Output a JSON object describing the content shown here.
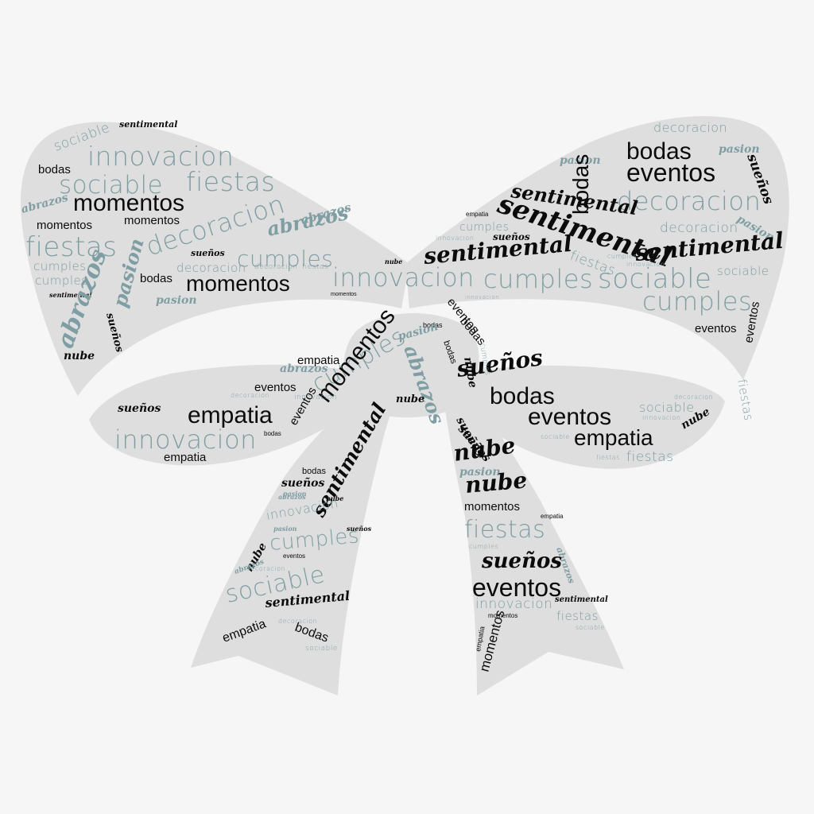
{
  "colors": {
    "background": "#f6f6f6",
    "bow_fill": "#dedede",
    "ink_dark": "#0b0b0b",
    "ink_teal": "#7f9ea3"
  },
  "words": [
    {
      "text": "sociable",
      "tone": "teal",
      "style": "thin"
    },
    {
      "text": "sentimental",
      "tone": "dark",
      "style": "script"
    },
    {
      "text": "innovacion",
      "tone": "teal",
      "style": "thin"
    },
    {
      "text": "sociable",
      "tone": "teal",
      "style": "thin"
    },
    {
      "text": "fiestas",
      "tone": "teal",
      "style": "thin"
    },
    {
      "text": "bodas",
      "tone": "dark",
      "style": "sans"
    },
    {
      "text": "momentos",
      "tone": "dark",
      "style": "sans"
    },
    {
      "text": "abrazos",
      "tone": "teal",
      "style": "script"
    },
    {
      "text": "momentos",
      "tone": "dark",
      "style": "sans"
    },
    {
      "text": "momentos",
      "tone": "dark",
      "style": "sans"
    },
    {
      "text": "decoracion",
      "tone": "teal",
      "style": "thin"
    },
    {
      "text": "abrazos",
      "tone": "teal",
      "style": "script"
    },
    {
      "text": "abrazos",
      "tone": "teal",
      "style": "script"
    },
    {
      "text": "fiestas",
      "tone": "teal",
      "style": "thin"
    },
    {
      "text": "pasion",
      "tone": "teal",
      "style": "script"
    },
    {
      "text": "sueños",
      "tone": "dark",
      "style": "script"
    },
    {
      "text": "decoracion",
      "tone": "teal",
      "style": "thin"
    },
    {
      "text": "cumples",
      "tone": "teal",
      "style": "thin"
    },
    {
      "text": "cumples",
      "tone": "teal",
      "style": "thin"
    },
    {
      "text": "decoracion",
      "tone": "teal",
      "style": "thin"
    },
    {
      "text": "fiestas",
      "tone": "teal",
      "style": "thin"
    },
    {
      "text": "cumples",
      "tone": "teal",
      "style": "thin"
    },
    {
      "text": "bodas",
      "tone": "dark",
      "style": "sans"
    },
    {
      "text": "momentos",
      "tone": "dark",
      "style": "sans"
    },
    {
      "text": "sentimental",
      "tone": "dark",
      "style": "script"
    },
    {
      "text": "pasion",
      "tone": "teal",
      "style": "script"
    },
    {
      "text": "abrazos",
      "tone": "teal",
      "style": "script"
    },
    {
      "text": "sueños",
      "tone": "dark",
      "style": "script"
    },
    {
      "text": "nube",
      "tone": "dark",
      "style": "script"
    },
    {
      "text": "innovacion",
      "tone": "teal",
      "style": "thin"
    },
    {
      "text": "cumples",
      "tone": "teal",
      "style": "thin"
    },
    {
      "text": "sociable",
      "tone": "teal",
      "style": "thin"
    },
    {
      "text": "cumples",
      "tone": "teal",
      "style": "thin"
    },
    {
      "text": "decoracion",
      "tone": "teal",
      "style": "thin"
    },
    {
      "text": "pasion",
      "tone": "teal",
      "style": "script"
    },
    {
      "text": "bodas",
      "tone": "dark",
      "style": "sans"
    },
    {
      "text": "bodas",
      "tone": "dark",
      "style": "sans"
    },
    {
      "text": "eventos",
      "tone": "dark",
      "style": "sans"
    },
    {
      "text": "pasion",
      "tone": "teal",
      "style": "script"
    },
    {
      "text": "decoracion",
      "tone": "teal",
      "style": "thin"
    },
    {
      "text": "sueños",
      "tone": "dark",
      "style": "script"
    },
    {
      "text": "sentimental",
      "tone": "dark",
      "style": "script"
    },
    {
      "text": "decoracion",
      "tone": "teal",
      "style": "thin"
    },
    {
      "text": "pasion",
      "tone": "teal",
      "style": "script"
    },
    {
      "text": "empatia",
      "tone": "dark",
      "style": "sans"
    },
    {
      "text": "cumples",
      "tone": "teal",
      "style": "thin"
    },
    {
      "text": "sueños",
      "tone": "dark",
      "style": "script"
    },
    {
      "text": "sentimental",
      "tone": "dark",
      "style": "script"
    },
    {
      "text": "innovacion",
      "tone": "teal",
      "style": "thin"
    },
    {
      "text": "sentimental",
      "tone": "dark",
      "style": "script"
    },
    {
      "text": "fiestas",
      "tone": "teal",
      "style": "thin"
    },
    {
      "text": "sentimental",
      "tone": "dark",
      "style": "script"
    },
    {
      "text": "cumples",
      "tone": "teal",
      "style": "thin"
    },
    {
      "text": "innovacion",
      "tone": "teal",
      "style": "thin"
    },
    {
      "text": "sociable",
      "tone": "teal",
      "style": "thin"
    },
    {
      "text": "eventos",
      "tone": "dark",
      "style": "sans"
    },
    {
      "text": "eventos",
      "tone": "dark",
      "style": "sans"
    },
    {
      "text": "fiestas",
      "tone": "teal",
      "style": "thin"
    },
    {
      "text": "momentos",
      "tone": "dark",
      "style": "sans"
    },
    {
      "text": "eventos",
      "tone": "dark",
      "style": "sans"
    },
    {
      "text": "innovacion",
      "tone": "teal",
      "style": "thin"
    },
    {
      "text": "bodas",
      "tone": "dark",
      "style": "sans"
    },
    {
      "text": "bodas",
      "tone": "dark",
      "style": "sans"
    },
    {
      "text": "nube",
      "tone": "dark",
      "style": "script"
    },
    {
      "text": "empatia",
      "tone": "dark",
      "style": "sans"
    },
    {
      "text": "abrazos",
      "tone": "teal",
      "style": "script"
    },
    {
      "text": "cumples",
      "tone": "teal",
      "style": "thin"
    },
    {
      "text": "momentos",
      "tone": "dark",
      "style": "sans"
    },
    {
      "text": "eventos",
      "tone": "dark",
      "style": "sans"
    },
    {
      "text": "abrazos",
      "tone": "teal",
      "style": "script"
    },
    {
      "text": "nube",
      "tone": "dark",
      "style": "script"
    },
    {
      "text": "pasion",
      "tone": "teal",
      "style": "script"
    },
    {
      "text": "bodas",
      "tone": "dark",
      "style": "sans"
    },
    {
      "text": "sueños",
      "tone": "dark",
      "style": "script"
    },
    {
      "text": "cumples",
      "tone": "teal",
      "style": "thin"
    },
    {
      "text": "empatia",
      "tone": "dark",
      "style": "sans"
    },
    {
      "text": "innovacion",
      "tone": "teal",
      "style": "thin"
    },
    {
      "text": "empatia",
      "tone": "dark",
      "style": "sans"
    },
    {
      "text": "decoracion",
      "tone": "teal",
      "style": "thin"
    },
    {
      "text": "innovacion",
      "tone": "teal",
      "style": "thin"
    },
    {
      "text": "eventos",
      "tone": "dark",
      "style": "sans"
    },
    {
      "text": "sueños",
      "tone": "dark",
      "style": "script"
    },
    {
      "text": "bodas",
      "tone": "dark",
      "style": "sans"
    },
    {
      "text": "nube",
      "tone": "dark",
      "style": "script"
    },
    {
      "text": "bodas",
      "tone": "dark",
      "style": "sans"
    },
    {
      "text": "eventos",
      "tone": "dark",
      "style": "sans"
    },
    {
      "text": "decoracion",
      "tone": "teal",
      "style": "thin"
    },
    {
      "text": "sociable",
      "tone": "teal",
      "style": "thin"
    },
    {
      "text": "innovacion",
      "tone": "teal",
      "style": "thin"
    },
    {
      "text": "nube",
      "tone": "dark",
      "style": "script"
    },
    {
      "text": "empatia",
      "tone": "dark",
      "style": "sans"
    },
    {
      "text": "sociable",
      "tone": "teal",
      "style": "thin"
    },
    {
      "text": "fiestas",
      "tone": "teal",
      "style": "thin"
    },
    {
      "text": "fiestas",
      "tone": "teal",
      "style": "thin"
    },
    {
      "text": "sueños",
      "tone": "dark",
      "style": "script"
    },
    {
      "text": "sueños",
      "tone": "dark",
      "style": "script"
    },
    {
      "text": "nube",
      "tone": "dark",
      "style": "script"
    },
    {
      "text": "pasion",
      "tone": "teal",
      "style": "script"
    },
    {
      "text": "nube",
      "tone": "dark",
      "style": "script"
    },
    {
      "text": "momentos",
      "tone": "dark",
      "style": "sans"
    },
    {
      "text": "empatia",
      "tone": "dark",
      "style": "sans"
    },
    {
      "text": "fiestas",
      "tone": "teal",
      "style": "thin"
    },
    {
      "text": "cumples",
      "tone": "teal",
      "style": "thin"
    },
    {
      "text": "abrazos",
      "tone": "teal",
      "style": "script"
    },
    {
      "text": "sueños",
      "tone": "dark",
      "style": "script"
    },
    {
      "text": "eventos",
      "tone": "dark",
      "style": "sans"
    },
    {
      "text": "innovacion",
      "tone": "teal",
      "style": "thin"
    },
    {
      "text": "momentos",
      "tone": "dark",
      "style": "sans"
    },
    {
      "text": "sentimental",
      "tone": "dark",
      "style": "script"
    },
    {
      "text": "fiestas",
      "tone": "teal",
      "style": "thin"
    },
    {
      "text": "sociable",
      "tone": "teal",
      "style": "thin"
    },
    {
      "text": "empatia",
      "tone": "dark",
      "style": "sans"
    },
    {
      "text": "momentos",
      "tone": "dark",
      "style": "sans"
    },
    {
      "text": "sueños",
      "tone": "dark",
      "style": "script"
    },
    {
      "text": "pasion",
      "tone": "teal",
      "style": "script"
    },
    {
      "text": "bodas",
      "tone": "dark",
      "style": "sans"
    },
    {
      "text": "sentimental",
      "tone": "dark",
      "style": "script"
    },
    {
      "text": "nube",
      "tone": "dark",
      "style": "script"
    },
    {
      "text": "abrazos",
      "tone": "teal",
      "style": "script"
    },
    {
      "text": "sueños",
      "tone": "dark",
      "style": "script"
    },
    {
      "text": "innovacion",
      "tone": "teal",
      "style": "thin"
    },
    {
      "text": "pasion",
      "tone": "teal",
      "style": "script"
    },
    {
      "text": "cumples",
      "tone": "teal",
      "style": "thin"
    },
    {
      "text": "eventos",
      "tone": "dark",
      "style": "sans"
    },
    {
      "text": "nube",
      "tone": "dark",
      "style": "script"
    },
    {
      "text": "abrazos",
      "tone": "teal",
      "style": "script"
    },
    {
      "text": "decoracion",
      "tone": "teal",
      "style": "thin"
    },
    {
      "text": "sociable",
      "tone": "teal",
      "style": "thin"
    },
    {
      "text": "sentimental",
      "tone": "dark",
      "style": "script"
    },
    {
      "text": "decoracion",
      "tone": "teal",
      "style": "thin"
    },
    {
      "text": "empatia",
      "tone": "dark",
      "style": "sans"
    },
    {
      "text": "bodas",
      "tone": "dark",
      "style": "sans"
    },
    {
      "text": "sociable",
      "tone": "teal",
      "style": "thin"
    }
  ]
}
